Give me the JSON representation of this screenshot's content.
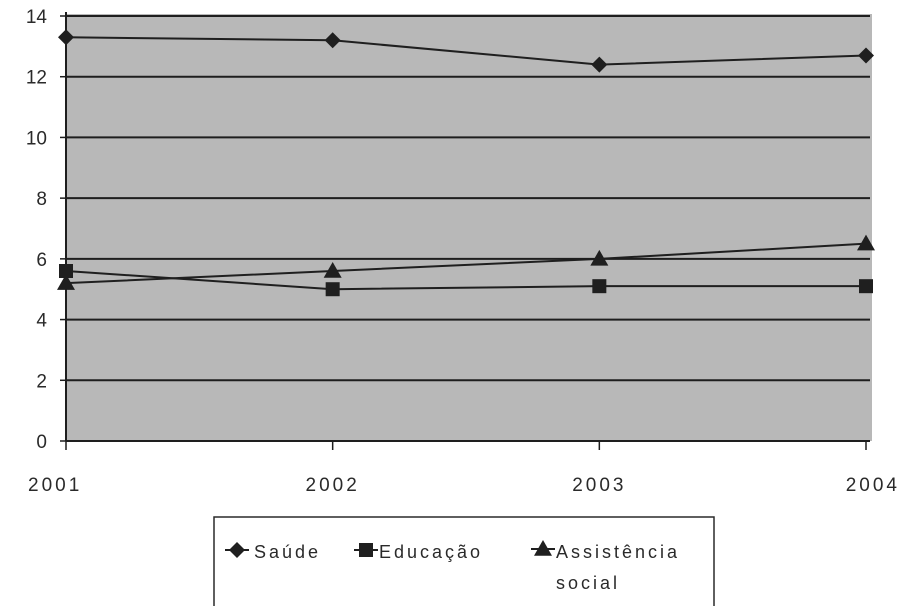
{
  "chart_data": {
    "type": "line",
    "categories": [
      "2001",
      "2002",
      "2003",
      "2004"
    ],
    "y_ticks": [
      "0",
      "2",
      "4",
      "6",
      "8",
      "10",
      "12",
      "14"
    ],
    "ylim": [
      0,
      14
    ],
    "grid": true,
    "legend_position": "bottom",
    "plot_background": "#b8b8b8",
    "series": [
      {
        "name": "Saúde",
        "marker": "diamond",
        "values": [
          13.3,
          13.2,
          12.4,
          12.7
        ]
      },
      {
        "name": "Educação",
        "marker": "square",
        "values": [
          5.6,
          5.0,
          5.1,
          5.1
        ]
      },
      {
        "name": "Assistência social",
        "marker": "triangle",
        "values": [
          5.2,
          5.6,
          6.0,
          6.5
        ]
      }
    ],
    "legend": {
      "line1": [
        "Saúde",
        "Educação",
        "Assistência"
      ],
      "line2": "social"
    }
  }
}
